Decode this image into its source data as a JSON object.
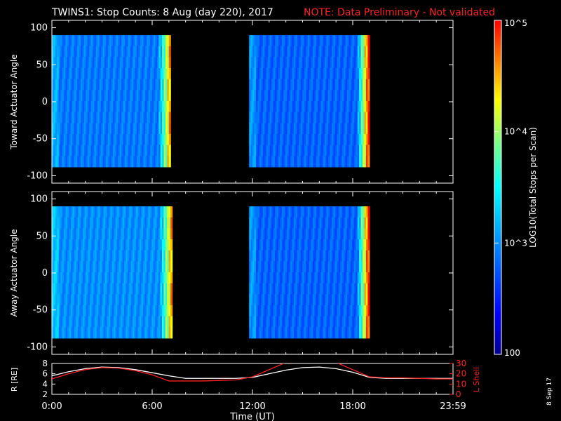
{
  "header": {
    "title": "TWINS1: Stop Counts:  8 Aug (day 220), 2017",
    "note": "NOTE: Data Preliminary - Not validated",
    "note_color": "#ff2020"
  },
  "datestamp": "8 Sep 17",
  "colorbar": {
    "label": "LOG10(Total Stops per Scan)",
    "tick_labels": [
      "10^5",
      "10^4",
      "10^3",
      "100"
    ],
    "tick_values": [
      100000,
      10000,
      1000,
      100
    ],
    "scale": "log",
    "range": [
      100,
      100000
    ]
  },
  "chart_data": [
    {
      "type": "heatmap",
      "panel": "toward",
      "ylabel": "Toward Actuator Angle",
      "ylim": [
        -110,
        110
      ],
      "xlim": [
        0,
        24
      ],
      "yticks": [
        100,
        50,
        0,
        -50,
        -100
      ],
      "ytick_labels": [
        "100",
        "50",
        "0",
        "-50",
        "-100"
      ],
      "angle_range": [
        -88,
        90
      ],
      "segments": [
        {
          "start_hour": 0.0,
          "end_hour": 7.1,
          "base_log": 2.9,
          "edge_log": 4.5
        },
        {
          "start_hour": 11.8,
          "end_hour": 19.0,
          "base_log": 2.8,
          "edge_log": 4.9
        }
      ]
    },
    {
      "type": "heatmap",
      "panel": "away",
      "ylabel": "Away Actuator Angle",
      "ylim": [
        -110,
        110
      ],
      "xlim": [
        0,
        24
      ],
      "yticks": [
        100,
        50,
        0,
        -50,
        -100
      ],
      "ytick_labels": [
        "100",
        "50",
        "0",
        "-50",
        "-100"
      ],
      "angle_range": [
        -88,
        90
      ],
      "segments": [
        {
          "start_hour": 0.0,
          "end_hour": 7.2,
          "base_log": 3.0,
          "edge_log": 4.5
        },
        {
          "start_hour": 11.8,
          "end_hour": 19.0,
          "base_log": 2.8,
          "edge_log": 4.9
        }
      ]
    },
    {
      "type": "line",
      "panel": "orbit",
      "ylabel": "R [RE]",
      "y2label": "L Shell",
      "xlabel": "Time (UT)",
      "xlim": [
        0,
        24
      ],
      "ylim": [
        2,
        8
      ],
      "y2lim": [
        0,
        30
      ],
      "yticks": [
        2,
        4,
        6,
        8
      ],
      "ytick_labels": [
        "2",
        "4",
        "6",
        "8"
      ],
      "y2ticks": [
        0,
        10,
        20,
        30
      ],
      "y2tick_labels": [
        "0",
        "10",
        "20",
        "30"
      ],
      "xticks": [
        0,
        6,
        12,
        18,
        24
      ],
      "xtick_labels": [
        "0:00",
        "6:00",
        "12:00",
        "18:00",
        "23:59"
      ],
      "series": [
        {
          "name": "R",
          "color": "#ffffff",
          "x": [
            0,
            1,
            2,
            3,
            4,
            5,
            6,
            7,
            8,
            9,
            10,
            11,
            12,
            13,
            14,
            15,
            16,
            17,
            18,
            19,
            20,
            21,
            22,
            23,
            24
          ],
          "y": [
            5.6,
            6.4,
            7.0,
            7.3,
            7.2,
            6.8,
            6.2,
            5.6,
            5.1,
            5.1,
            5.1,
            5.1,
            5.3,
            6.0,
            6.7,
            7.2,
            7.3,
            7.0,
            6.3,
            5.3,
            5.1,
            5.1,
            5.1,
            5.1,
            5.1
          ]
        },
        {
          "name": "L Shell",
          "color": "#ff2020",
          "x": [
            0,
            1,
            2,
            3,
            4,
            5,
            6,
            7,
            8,
            9,
            10,
            11,
            12,
            13,
            14,
            15,
            16,
            17,
            18,
            19,
            20,
            21,
            22,
            23,
            24
          ],
          "y": [
            15,
            20,
            24,
            26,
            25.5,
            23,
            19,
            13,
            13,
            13,
            13.5,
            14,
            17,
            24,
            31,
            33,
            33,
            31,
            24,
            17,
            16,
            16,
            15.5,
            15,
            15
          ]
        }
      ]
    }
  ]
}
